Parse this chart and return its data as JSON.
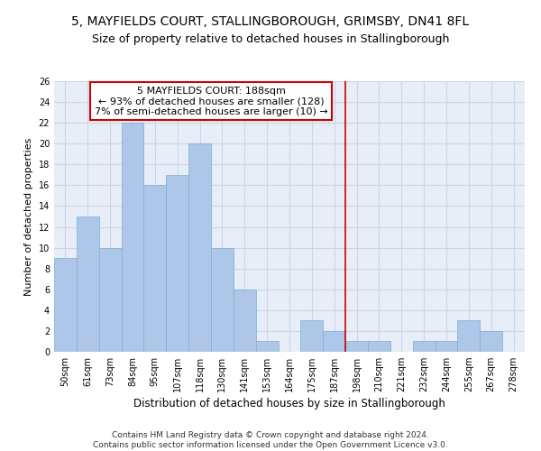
{
  "title1": "5, MAYFIELDS COURT, STALLINGBOROUGH, GRIMSBY, DN41 8FL",
  "title2": "Size of property relative to detached houses in Stallingborough",
  "xlabel": "Distribution of detached houses by size in Stallingborough",
  "ylabel": "Number of detached properties",
  "footer": "Contains HM Land Registry data © Crown copyright and database right 2024.\nContains public sector information licensed under the Open Government Licence v3.0.",
  "categories": [
    "50sqm",
    "61sqm",
    "73sqm",
    "84sqm",
    "95sqm",
    "107sqm",
    "118sqm",
    "130sqm",
    "141sqm",
    "153sqm",
    "164sqm",
    "175sqm",
    "187sqm",
    "198sqm",
    "210sqm",
    "221sqm",
    "232sqm",
    "244sqm",
    "255sqm",
    "267sqm",
    "278sqm"
  ],
  "values": [
    9,
    13,
    10,
    22,
    16,
    17,
    20,
    10,
    6,
    1,
    0,
    3,
    2,
    1,
    1,
    0,
    1,
    1,
    3,
    2,
    0
  ],
  "bar_color": "#aec6e8",
  "bar_edge_color": "#7bafd4",
  "vline_index": 12,
  "vline_color": "#cc0000",
  "annotation_text": "5 MAYFIELDS COURT: 188sqm\n← 93% of detached houses are smaller (128)\n7% of semi-detached houses are larger (10) →",
  "annotation_box_color": "#ffffff",
  "annotation_border_color": "#cc0000",
  "ylim": [
    0,
    26
  ],
  "yticks": [
    0,
    2,
    4,
    6,
    8,
    10,
    12,
    14,
    16,
    18,
    20,
    22,
    24,
    26
  ],
  "grid_color": "#ccd5e8",
  "bg_color": "#e8eef8",
  "title1_fontsize": 10,
  "title2_fontsize": 9,
  "xlabel_fontsize": 8.5,
  "ylabel_fontsize": 8,
  "tick_fontsize": 7,
  "annotation_fontsize": 8,
  "footer_fontsize": 6.5
}
